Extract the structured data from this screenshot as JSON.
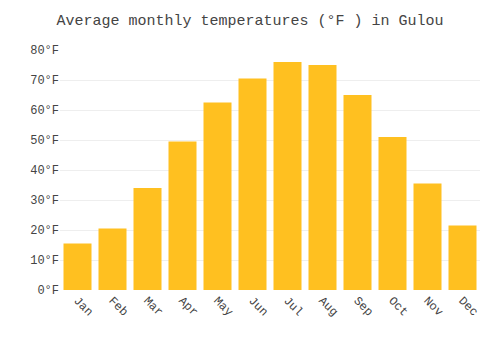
{
  "chart_data": {
    "type": "bar",
    "title": "Average monthly temperatures (°F ) in Gulou",
    "categories": [
      "Jan",
      "Feb",
      "Mar",
      "Apr",
      "May",
      "Jun",
      "Jul",
      "Aug",
      "Sep",
      "Oct",
      "Nov",
      "Dec"
    ],
    "values": [
      15.5,
      20.5,
      34.0,
      49.5,
      62.5,
      70.5,
      76.0,
      75.0,
      65.0,
      51.0,
      35.5,
      21.5
    ],
    "color": "#FFC020",
    "ylim": [
      0,
      80
    ],
    "yticks": [
      {
        "value": 0,
        "label": "0°F"
      },
      {
        "value": 10,
        "label": "10°F"
      },
      {
        "value": 20,
        "label": "20°F"
      },
      {
        "value": 30,
        "label": "30°F"
      },
      {
        "value": 40,
        "label": "40°F"
      },
      {
        "value": 50,
        "label": "50°F"
      },
      {
        "value": 60,
        "label": "60°F"
      },
      {
        "value": 70,
        "label": "70°F"
      },
      {
        "value": 80,
        "label": "80°F"
      }
    ],
    "grid": true
  }
}
